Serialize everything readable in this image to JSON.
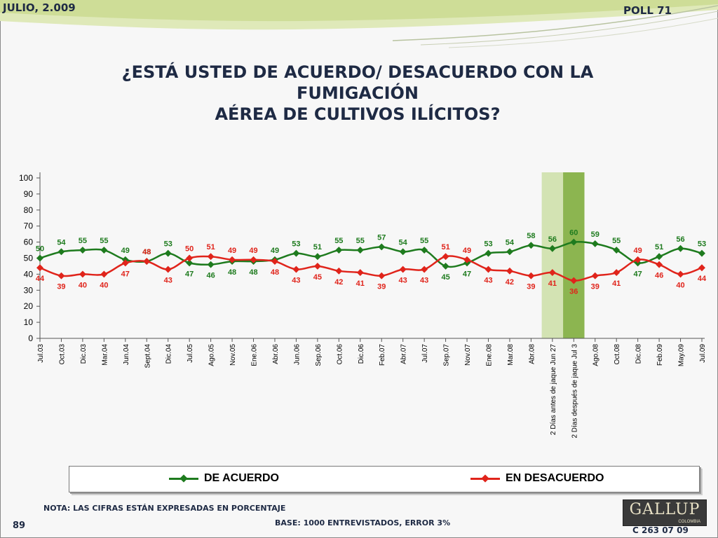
{
  "header": {
    "date_label": "JULIO, 2.009",
    "poll_label": "POLL 71"
  },
  "title": {
    "line1": "¿ESTÁ USTED DE ACUERDO/ DESACUERDO CON LA FUMIGACIÓN",
    "line2": "AÉREA DE CULTIVOS ILÍCITOS?"
  },
  "colors": {
    "acuerdo": "#1e7b1e",
    "desacuerdo": "#e0241b",
    "highlight_light": "#d3e3b3",
    "highlight_dark": "#8cb550",
    "navy": "#1e2a44"
  },
  "chart_data": {
    "type": "line",
    "categories": [
      "Jul.03",
      "Oct.03",
      "Dic.03",
      "Mar.04",
      "Jun.04",
      "Sept.04",
      "Dic.04",
      "Jul.05",
      "Ago.05",
      "Nov.05",
      "Ene.06",
      "Abr.06",
      "Jun.06",
      "Sep.06",
      "Oct.06",
      "Dic.06",
      "Feb.07",
      "Abr.07",
      "Jul.07",
      "Sep.07",
      "Nov.07",
      "Ene.08",
      "Mar.08",
      "Abr.08",
      "2 Días antes de jaque Jun 27",
      "2 Días después de jaque Jul 3",
      "Ago.08",
      "Oct.08",
      "Dic.08",
      "Feb.09",
      "May.09",
      "Jul.09"
    ],
    "series": [
      {
        "name": "DE ACUERDO",
        "color": "#1e7b1e",
        "values": [
          50,
          54,
          55,
          55,
          49,
          48,
          53,
          47,
          46,
          48,
          48,
          49,
          53,
          51,
          55,
          55,
          57,
          54,
          55,
          45,
          47,
          53,
          54,
          58,
          56,
          60,
          59,
          55,
          47,
          51,
          56,
          53
        ]
      },
      {
        "name": "EN DESACUERDO",
        "color": "#e0241b",
        "values": [
          44,
          39,
          40,
          40,
          47,
          48,
          43,
          50,
          51,
          49,
          49,
          48,
          43,
          45,
          42,
          41,
          39,
          43,
          43,
          51,
          49,
          43,
          42,
          39,
          41,
          36,
          39,
          41,
          49,
          46,
          40,
          44
        ]
      }
    ],
    "ylim": [
      0,
      100
    ],
    "yticks": [
      0,
      10,
      20,
      30,
      40,
      50,
      60,
      70,
      80,
      90,
      100
    ],
    "highlight_bands": [
      {
        "category_index": 24,
        "color": "#d3e3b3"
      },
      {
        "category_index": 25,
        "color": "#8cb550"
      }
    ],
    "legend_position": "bottom"
  },
  "legend": {
    "acuerdo": "DE ACUERDO",
    "desacuerdo": "EN DESACUERDO"
  },
  "footer": {
    "nota": "NOTA: LAS CIFRAS ESTÁN EXPRESADAS EN PORCENTAJE",
    "base": "BASE: 1000 ENTREVISTADOS, ERROR 3%",
    "page_number": "89",
    "logo_text": "GALLUP",
    "logo_sub": "COLOMBIA",
    "code": "C 263 07 09"
  }
}
